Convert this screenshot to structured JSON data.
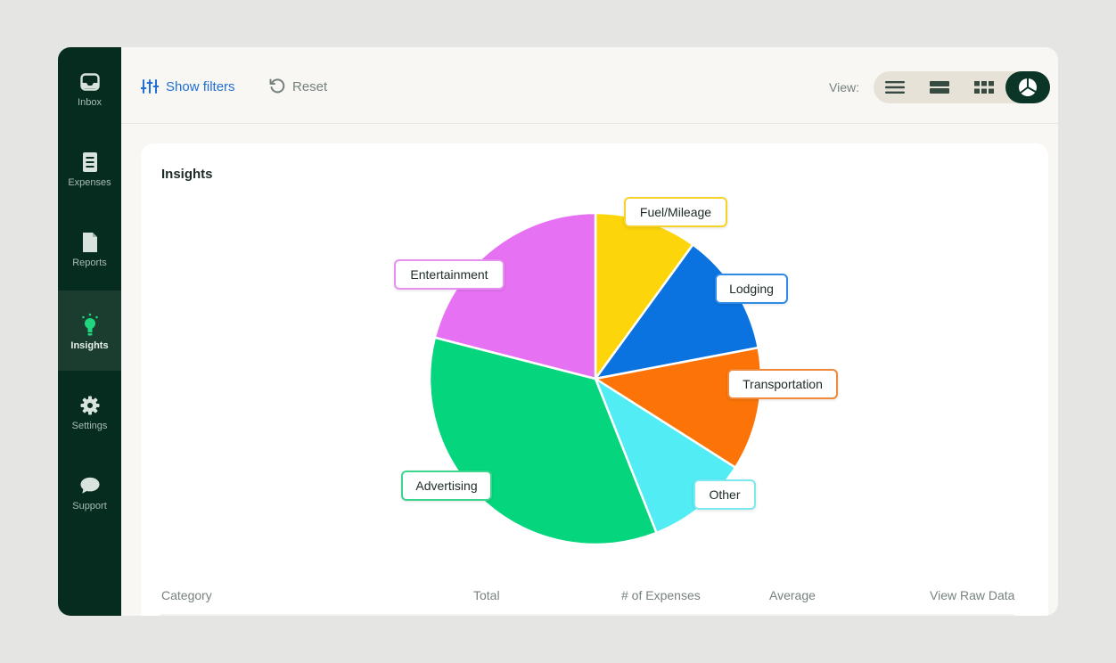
{
  "sidebar": {
    "items": [
      {
        "label": "Inbox",
        "icon": "inbox-icon"
      },
      {
        "label": "Expenses",
        "icon": "receipt-icon"
      },
      {
        "label": "Reports",
        "icon": "document-icon"
      },
      {
        "label": "Insights",
        "icon": "lightbulb-icon",
        "active": true
      },
      {
        "label": "Settings",
        "icon": "gear-icon"
      },
      {
        "label": "Support",
        "icon": "chat-bubble-icon"
      }
    ]
  },
  "toolbar": {
    "show_filters": "Show filters",
    "reset": "Reset",
    "view_label": "View:",
    "view_options": [
      "list-view-icon",
      "compact-view-icon",
      "grid-view-icon",
      "pie-chart-view-icon"
    ],
    "selected_view": "pie-chart-view-icon"
  },
  "insights": {
    "title": "Insights"
  },
  "chart_data": {
    "type": "pie",
    "title": "",
    "categories": [
      "Fuel/Mileage",
      "Lodging",
      "Transportation",
      "Other",
      "Advertising",
      "Entertainment"
    ],
    "values": [
      10,
      12,
      12,
      10,
      35,
      21
    ],
    "colors": [
      "#fcd60a",
      "#0a73e0",
      "#fc7407",
      "#52ecf5",
      "#05d57c",
      "#e771f3"
    ],
    "label_borders": [
      "#f5d32a",
      "#2f8be6",
      "#f08a3a",
      "#7ae9f0",
      "#3cd58f",
      "#e690ef"
    ]
  },
  "table": {
    "headers": [
      "Category",
      "Total",
      "# of Expenses",
      "Average",
      "View Raw Data"
    ]
  },
  "colors": {
    "sidebar_bg": "#062c20",
    "accent": "#1f6fd6",
    "active_view": "#0b3526"
  }
}
